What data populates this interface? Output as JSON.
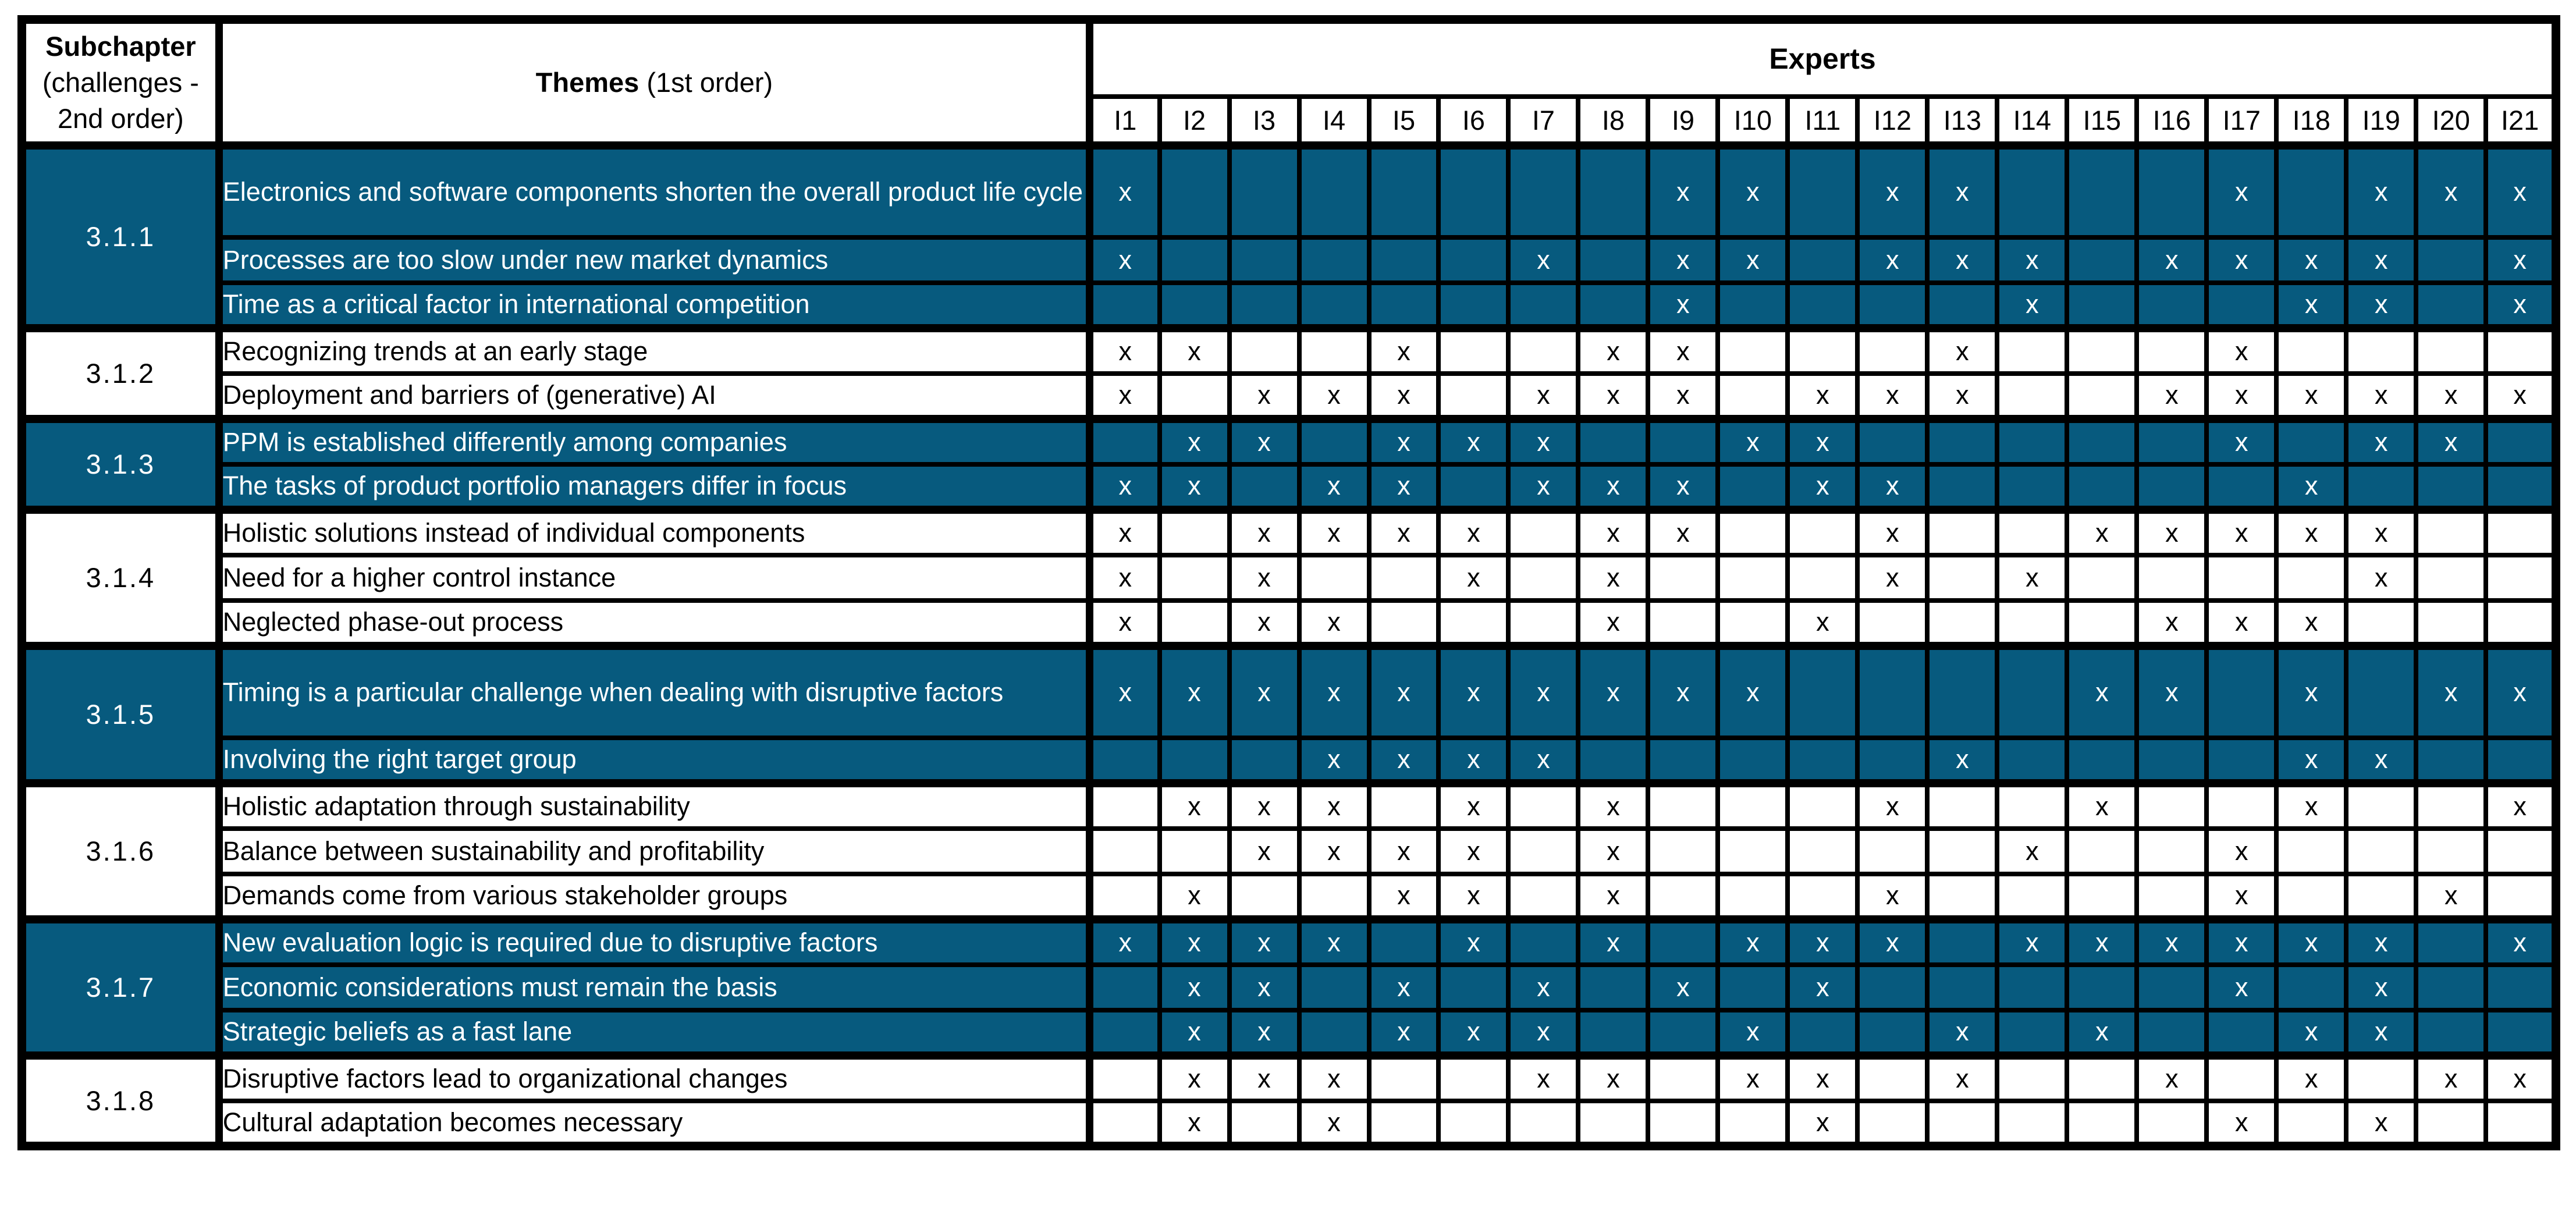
{
  "page": {
    "background": "#ffffff",
    "accent_teal": "#075A7E",
    "grid_color": "#000000",
    "text_on_teal": "#ffffff",
    "mark_glyph": "x"
  },
  "header": {
    "subchapter_title": "Subchapter",
    "subchapter_subtitle": "(challenges - 2nd order)",
    "themes_title": "Themes",
    "themes_suffix": " (1st order)",
    "experts_title": "Experts"
  },
  "columns": [
    "I1",
    "I2",
    "I3",
    "I4",
    "I5",
    "I6",
    "I7",
    "I8",
    "I9",
    "I10",
    "I11",
    "I12",
    "I13",
    "I14",
    "I15",
    "I16",
    "I17",
    "I18",
    "I19",
    "I20",
    "I21"
  ],
  "groups": [
    {
      "id": "3.1.1",
      "shaded": true,
      "rows": [
        {
          "theme": "Electronics and software components shorten the overall product life cycle",
          "double": true,
          "x": [
            1,
            9,
            10,
            12,
            13,
            17,
            19,
            20,
            21
          ]
        },
        {
          "theme": "Processes are too slow under new market dynamics",
          "double": false,
          "x": [
            1,
            7,
            9,
            10,
            12,
            13,
            14,
            16,
            17,
            18,
            19,
            21
          ]
        },
        {
          "theme": "Time as a critical factor in international competition",
          "double": false,
          "x": [
            9,
            14,
            18,
            19,
            21
          ]
        }
      ]
    },
    {
      "id": "3.1.2",
      "shaded": false,
      "rows": [
        {
          "theme": "Recognizing trends at an early stage",
          "double": false,
          "x": [
            1,
            2,
            5,
            8,
            9,
            13,
            17
          ]
        },
        {
          "theme": "Deployment and barriers of (generative) AI",
          "double": false,
          "x": [
            1,
            3,
            4,
            5,
            7,
            8,
            9,
            11,
            12,
            13,
            16,
            17,
            18,
            19,
            20,
            21
          ]
        }
      ]
    },
    {
      "id": "3.1.3",
      "shaded": true,
      "rows": [
        {
          "theme": "PPM is established differently among companies",
          "double": false,
          "x": [
            2,
            3,
            5,
            6,
            7,
            10,
            11,
            17,
            19,
            20
          ]
        },
        {
          "theme": "The tasks of product portfolio managers differ in focus",
          "double": false,
          "x": [
            1,
            2,
            4,
            5,
            7,
            8,
            9,
            11,
            12,
            18
          ]
        }
      ]
    },
    {
      "id": "3.1.4",
      "shaded": false,
      "rows": [
        {
          "theme": "Holistic solutions instead of individual components",
          "double": false,
          "x": [
            1,
            3,
            4,
            5,
            6,
            8,
            9,
            12,
            15,
            16,
            17,
            18,
            19
          ]
        },
        {
          "theme": "Need for a higher control instance",
          "double": false,
          "x": [
            1,
            3,
            6,
            8,
            12,
            14,
            19
          ]
        },
        {
          "theme": "Neglected phase-out process",
          "double": false,
          "x": [
            1,
            3,
            4,
            8,
            11,
            16,
            17,
            18
          ]
        }
      ]
    },
    {
      "id": "3.1.5",
      "shaded": true,
      "rows": [
        {
          "theme": "Timing is a particular challenge when dealing with disruptive factors",
          "double": true,
          "x": [
            1,
            2,
            3,
            4,
            5,
            6,
            7,
            8,
            9,
            10,
            15,
            16,
            18,
            20,
            21
          ]
        },
        {
          "theme": "Involving the right target group",
          "double": false,
          "x": [
            4,
            5,
            6,
            7,
            13,
            18,
            19
          ]
        }
      ]
    },
    {
      "id": "3.1.6",
      "shaded": false,
      "rows": [
        {
          "theme": "Holistic adaptation through sustainability",
          "double": false,
          "x": [
            2,
            3,
            4,
            6,
            8,
            12,
            15,
            18,
            21
          ]
        },
        {
          "theme": "Balance between sustainability and profitability",
          "double": false,
          "x": [
            3,
            4,
            5,
            6,
            8,
            14,
            17
          ]
        },
        {
          "theme": "Demands come from various stakeholder groups",
          "double": false,
          "x": [
            2,
            5,
            6,
            8,
            12,
            17,
            20
          ]
        }
      ]
    },
    {
      "id": "3.1.7",
      "shaded": true,
      "rows": [
        {
          "theme": "New evaluation logic is required due to disruptive factors",
          "double": false,
          "x": [
            1,
            2,
            3,
            4,
            6,
            8,
            10,
            11,
            12,
            14,
            15,
            16,
            17,
            18,
            19,
            21
          ]
        },
        {
          "theme": "Economic considerations must remain the basis",
          "double": false,
          "x": [
            2,
            3,
            5,
            7,
            9,
            11,
            17,
            19
          ]
        },
        {
          "theme": "Strategic beliefs as a fast lane",
          "double": false,
          "x": [
            2,
            3,
            5,
            6,
            7,
            10,
            13,
            15,
            18,
            19
          ]
        }
      ]
    },
    {
      "id": "3.1.8",
      "shaded": false,
      "rows": [
        {
          "theme": "Disruptive factors lead to organizational changes",
          "double": false,
          "x": [
            2,
            3,
            4,
            7,
            8,
            10,
            11,
            13,
            16,
            18,
            20,
            21
          ]
        },
        {
          "theme": "Cultural adaptation becomes necessary",
          "double": false,
          "x": [
            2,
            4,
            11,
            17,
            19
          ]
        }
      ]
    }
  ]
}
